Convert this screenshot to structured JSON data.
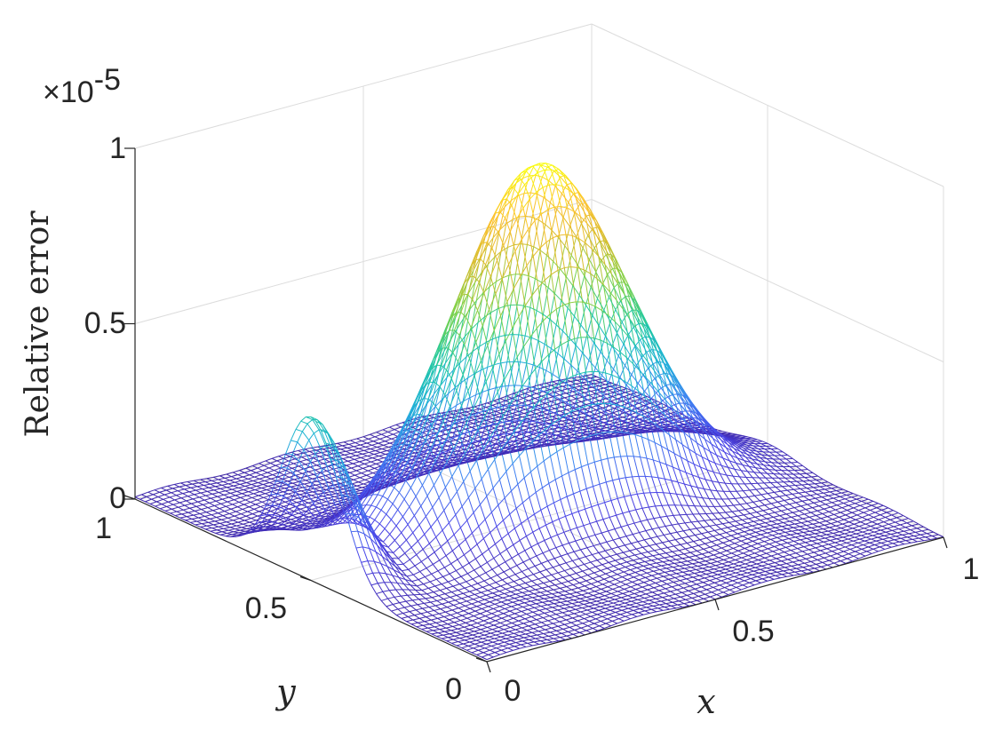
{
  "chart_data": {
    "type": "surface",
    "title": "",
    "xlabel": "x",
    "ylabel": "y",
    "zlabel": "Relative error",
    "z_exponent_label": "×10",
    "z_exponent_power": "-5",
    "xlim": [
      0,
      1
    ],
    "ylim": [
      0,
      1
    ],
    "zlim": [
      0,
      1e-05
    ],
    "x_ticks": [
      "0",
      "0.5",
      "1"
    ],
    "y_ticks": [
      "0",
      "0.5",
      "1"
    ],
    "z_ticks": [
      "0",
      "0.5",
      "1"
    ],
    "grid": true,
    "colormap": "parula",
    "colors": [
      "#3e26a8",
      "#4a44e8",
      "#3f84f2",
      "#1fb2d7",
      "#21c9a0",
      "#7cd34a",
      "#d4bd2e",
      "#fdc12e",
      "#f9fb0e"
    ],
    "features": [
      {
        "description": "peak along y = 0.5 ridge",
        "x": 0.5,
        "y": 0.5,
        "z": 1e-05
      },
      {
        "description": "secondary peak",
        "x": 0.0,
        "y": 0.5,
        "z": 4.6e-06
      },
      {
        "description": "background level",
        "z": 0.0
      }
    ]
  }
}
